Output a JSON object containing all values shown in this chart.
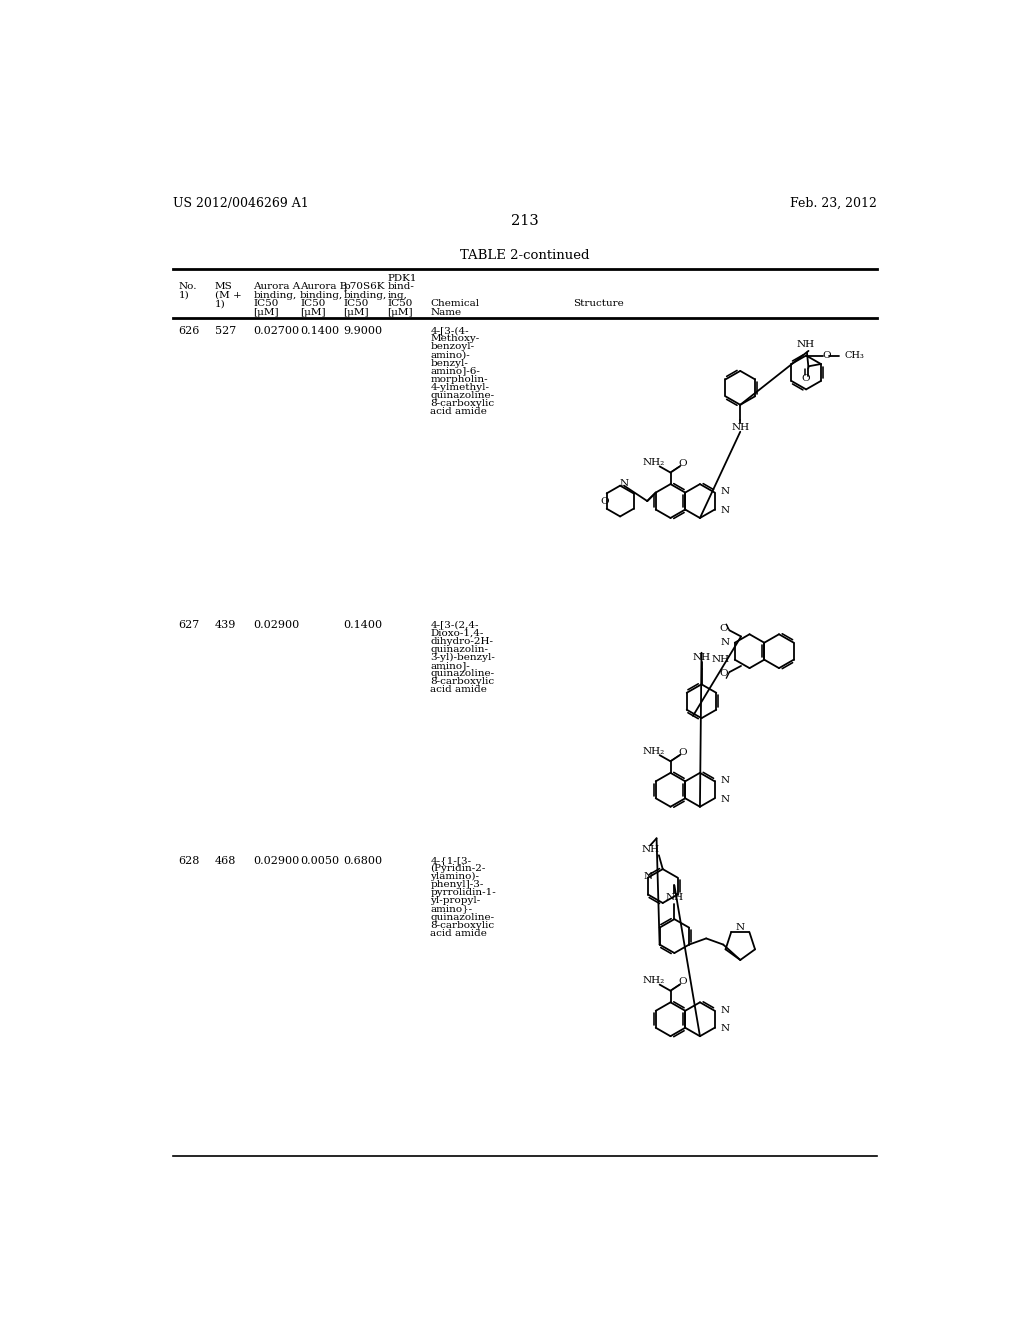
{
  "page_left": "US 2012/0046269 A1",
  "page_right": "Feb. 23, 2012",
  "page_number": "213",
  "table_title": "TABLE 2-continued",
  "background_color": "#ffffff",
  "text_color": "#000000",
  "rows": [
    {
      "no": "626",
      "ms": "527",
      "aurora_a": "0.02700",
      "aurora_b": "0.1400",
      "p70s6k": "9.9000",
      "pdk1": "",
      "chem_name": "4-[3-(4-\nMethoxy-\nbenzoyl-\namino)-\nbenzyl-\namino]-6-\nmorpholin-\n4-ylmethyl-\nquinazoline-\n8-carboxylic\nacid amide"
    },
    {
      "no": "627",
      "ms": "439",
      "aurora_a": "0.02900",
      "aurora_b": "",
      "p70s6k": "0.1400",
      "pdk1": "",
      "chem_name": "4-[3-(2,4-\nDioxo-1,4-\ndihydro-2H-\nquinazolin-\n3-yl)-benzyl-\namino]-\nquinazoline-\n8-carboxylic\nacid amide"
    },
    {
      "no": "628",
      "ms": "468",
      "aurora_a": "0.02900",
      "aurora_b": "0.0050",
      "p70s6k": "0.6800",
      "pdk1": "",
      "chem_name": "4-{1-[3-\n(Pyridin-2-\nylamino)-\nphenyl]-3-\npyrrolidin-1-\nyl-propyl-\namino}-\nquinazoline-\n8-carboxylic\nacid amide"
    }
  ]
}
